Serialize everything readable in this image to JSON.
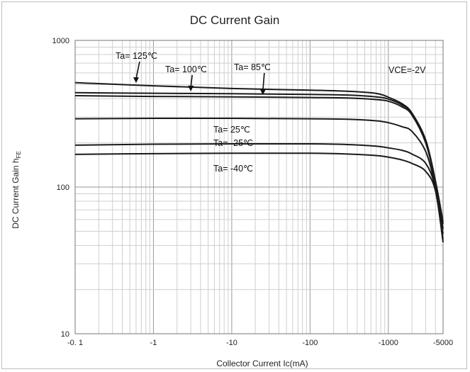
{
  "chart_data": {
    "type": "line",
    "title": "DC Current Gain",
    "xlabel": "Collector Current   Ic(mA)",
    "ylabel_main": "DC Current Gain  h",
    "ylabel_sub": "FE",
    "x_scale": "log",
    "y_scale": "log",
    "xlim": [
      -0.1,
      -5000
    ],
    "ylim": [
      10,
      1000
    ],
    "x_ticks": [
      {
        "value": -0.1,
        "label": "-0. 1"
      },
      {
        "value": -1,
        "label": "-1"
      },
      {
        "value": -10,
        "label": "-10"
      },
      {
        "value": -100,
        "label": "-100"
      },
      {
        "value": -1000,
        "label": "-1000"
      },
      {
        "value": -5000,
        "label": "-5000"
      }
    ],
    "y_ticks": [
      {
        "value": 10,
        "label": "10"
      },
      {
        "value": 100,
        "label": "100"
      },
      {
        "value": 1000,
        "label": "1000"
      }
    ],
    "grid": true,
    "series": [
      {
        "name": "Ta= 125℃",
        "x": [
          -0.1,
          -1,
          -10,
          -100,
          -300,
          -700,
          -1000,
          -1500,
          -2000,
          -3000,
          -4000,
          -5000
        ],
        "y": [
          515,
          490,
          470,
          458,
          450,
          435,
          410,
          370,
          320,
          210,
          110,
          58
        ]
      },
      {
        "name": "Ta= 100℃",
        "x": [
          -0.1,
          -1,
          -10,
          -100,
          -300,
          -700,
          -1000,
          -1500,
          -2000,
          -3000,
          -4000,
          -5000
        ],
        "y": [
          440,
          436,
          433,
          428,
          424,
          412,
          398,
          362,
          318,
          205,
          108,
          56
        ]
      },
      {
        "name": "Ta= 85℃",
        "x": [
          -0.1,
          -1,
          -10,
          -100,
          -300,
          -700,
          -1000,
          -1500,
          -2000,
          -3000,
          -4000,
          -5000
        ],
        "y": [
          420,
          415,
          412,
          408,
          405,
          395,
          385,
          352,
          310,
          200,
          106,
          52
        ]
      },
      {
        "name": "Ta= 25℃",
        "x": [
          -0.1,
          -1,
          -10,
          -100,
          -300,
          -700,
          -1000,
          -1500,
          -2000,
          -3000,
          -4000,
          -5000
        ],
        "y": [
          292,
          294,
          294,
          292,
          290,
          283,
          275,
          258,
          240,
          175,
          100,
          48
        ]
      },
      {
        "name": "Ta= -25℃",
        "x": [
          -0.1,
          -1,
          -10,
          -100,
          -300,
          -700,
          -1000,
          -1500,
          -2000,
          -3000,
          -4000,
          -5000
        ],
        "y": [
          193,
          196,
          197,
          197,
          195,
          190,
          185,
          178,
          168,
          145,
          98,
          44
        ]
      },
      {
        "name": "Ta= -40℃",
        "x": [
          -0.1,
          -1,
          -10,
          -100,
          -300,
          -700,
          -1000,
          -1500,
          -2000,
          -3000,
          -4000,
          -5000
        ],
        "y": [
          167,
          169,
          170,
          170,
          168,
          164,
          160,
          153,
          145,
          128,
          94,
          42
        ]
      }
    ],
    "annotations": [
      {
        "text": "Ta= 125℃",
        "series": 0,
        "arrow_x": -0.6
      },
      {
        "text": "Ta= 100℃",
        "series": 1,
        "arrow_x": -3
      },
      {
        "text": "Ta= 85℃",
        "series": 2,
        "arrow_x": -25
      },
      {
        "text": "Ta= 25℃",
        "series": 3
      },
      {
        "text": "Ta= -25℃",
        "series": 4
      },
      {
        "text": "Ta= -40℃",
        "series": 5
      },
      {
        "text": "VCE=-2V"
      }
    ]
  }
}
